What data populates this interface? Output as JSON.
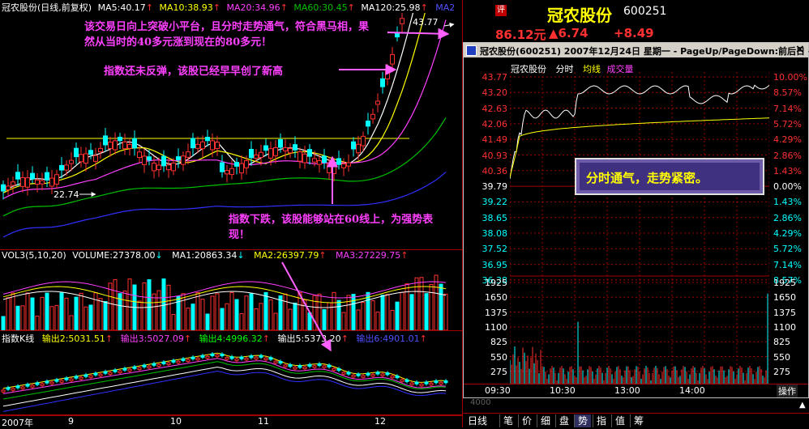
{
  "left": {
    "price_header": {
      "title": "冠农股份(日线,前复权)",
      "ma5": "MA5:40.17",
      "ma10": "MA10:38.93",
      "ma20": "MA20:34.96",
      "ma60": "MA60:30.45",
      "ma120": "MA120:25.98",
      "ma2": "MA2",
      "high_label": "43.77",
      "low_label": "22.74"
    },
    "volume_header": {
      "title": "VOL3(5,10,20)",
      "volume": "VOLUME:27378.00",
      "ma1": "MA1:20863.34",
      "ma2": "MA2:26397.79",
      "ma3": "MA3:27229.75"
    },
    "index_header": {
      "title": "指数K线",
      "out2": "输出2:5031.51",
      "out3": "输出3:5027.09",
      "out4": "输出4:4996.32",
      "out5": "输出5:5373.20",
      "out6": "输出6:4901.01"
    },
    "dates": [
      "2007年",
      "9",
      "10",
      "11",
      "12"
    ],
    "annotations": {
      "top": "该交易日向上突破小平台，且分时走势通气，符合黑马相，果然从当时的40多元涨到现在的80多元！",
      "mid": "指数还未反弹，该股已经早早创了新高",
      "low": "指数下跌，该股能够站在60线上，为强势表现！"
    }
  },
  "right": {
    "stock_name": "冠农股份",
    "stock_code": "600251",
    "eval_icon": "评",
    "price": "86.12元",
    "change": "▲6.74",
    "change_pct": "+8.49",
    "window_title": "冠农股份(600251) 2007年12月24日 星期一 - PageUp/PageDown:前后日 -",
    "close_glyph": "×",
    "legend": {
      "name": "冠农股份",
      "t1": "分时",
      "t2": "均线",
      "t3": "成交量"
    },
    "price_scale": [
      "43.77",
      "43.20",
      "42.63",
      "42.06",
      "41.49",
      "40.93",
      "40.36",
      "39.79",
      "39.22",
      "38.65",
      "38.08",
      "37.52",
      "36.95",
      "36.38"
    ],
    "pct_scale": [
      "10.00%",
      "8.57%",
      "7.14%",
      "5.72%",
      "4.29%",
      "2.86%",
      "1.43%",
      "0.00%",
      "1.43%",
      "2.86%",
      "4.29%",
      "5.72%",
      "7.14%",
      "8.57%"
    ],
    "vol_scale": [
      "1925",
      "1650",
      "1375",
      "1100",
      "825",
      "550",
      "275"
    ],
    "time_axis": [
      "09:30",
      "10:30",
      "13:00",
      "14:00"
    ],
    "callout": "分时通气，走势紧密。",
    "operate_btn": "操作",
    "arrow_up_glyph": "▲",
    "cut_vol_label": "4000"
  },
  "toolbar": [
    "日线",
    "笔",
    "价",
    "细",
    "盘",
    "势",
    "指",
    "值",
    "筹"
  ],
  "toolbar_active": "势",
  "colors": {
    "up": "#ff3030",
    "down": "#00ffff",
    "ma5": "#ffffff",
    "ma10": "#ffff00",
    "ma20": "#ff40ff",
    "ma60": "#00c000",
    "ma120": "#3030ff",
    "anno": "#ff40ff",
    "grid": "#a00000"
  }
}
